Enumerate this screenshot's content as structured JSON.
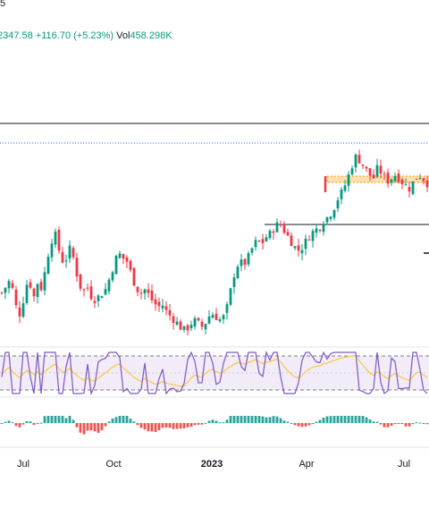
{
  "header": {
    "top_fragment": "5",
    "last_value": "2347.58",
    "change": "+116.70 (+5.23%)",
    "vol_label": "Vol",
    "vol_value": "458.298K"
  },
  "colors": {
    "up": "#089981",
    "down": "#f23645",
    "rsi_line": "#7e57c2",
    "rsi_ma": "#f7c845",
    "rsi_band": "#ede7f6",
    "macd_pos": "#26a69a",
    "macd_neg": "#ef5350",
    "highlight": "#ff9800"
  },
  "chart_data": {
    "type": "candlestick",
    "x_labels": [
      {
        "text": "Jul",
        "bold": false
      },
      {
        "text": "Oct",
        "bold": false
      },
      {
        "text": "2023",
        "bold": true
      },
      {
        "text": "Apr",
        "bold": false
      },
      {
        "text": "Jul",
        "bold": false
      }
    ],
    "close_path": [
      0.62,
      0.66,
      0.7,
      0.55,
      0.5,
      0.6,
      0.72,
      0.58,
      0.68,
      0.64,
      0.8,
      0.92,
      0.95,
      0.84,
      0.78,
      0.88,
      0.82,
      0.7,
      0.62,
      0.66,
      0.6,
      0.58,
      0.61,
      0.63,
      0.7,
      0.78,
      0.85,
      0.82,
      0.8,
      0.72,
      0.65,
      0.62,
      0.64,
      0.6,
      0.56,
      0.54,
      0.55,
      0.5,
      0.48,
      0.45,
      0.42,
      0.4,
      0.44,
      0.46,
      0.44,
      0.42,
      0.48,
      0.5,
      0.48,
      0.46,
      0.5,
      0.62,
      0.74,
      0.8,
      0.78,
      0.82,
      0.88,
      0.92,
      0.9,
      0.94,
      0.96,
      1.0,
      1.02,
      0.98,
      0.94,
      0.9,
      0.86,
      0.88,
      0.92,
      0.96,
      0.98,
      1.0,
      1.04,
      1.06,
      1.1,
      1.16,
      1.2,
      1.26,
      1.34,
      1.4,
      1.38,
      1.34,
      1.3,
      1.28,
      1.34,
      1.3,
      1.26,
      1.28,
      1.3,
      1.27,
      1.24,
      1.22,
      1.26,
      1.3,
      1.28,
      1.25
    ]
  }
}
